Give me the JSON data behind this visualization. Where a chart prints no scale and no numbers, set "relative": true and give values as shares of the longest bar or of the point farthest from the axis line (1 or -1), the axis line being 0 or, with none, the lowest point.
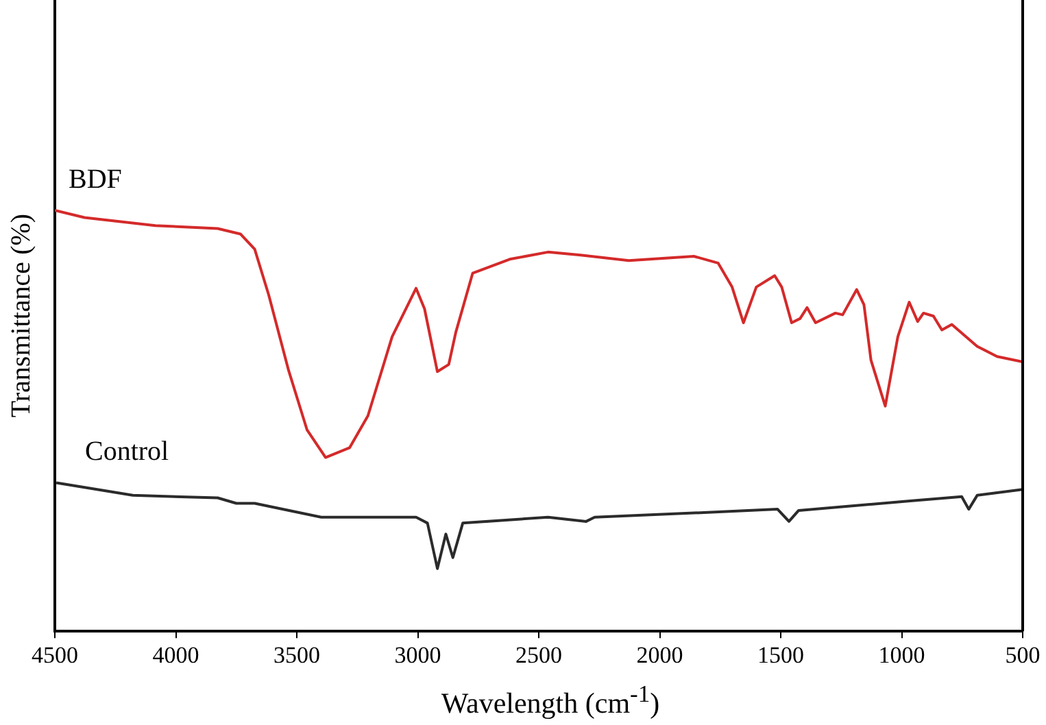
{
  "chart_data": {
    "type": "line",
    "xlabel": "Wavelength (cm$^{-1}$)",
    "ylabel": "Transmittance (%)",
    "relative": true,
    "xlim": [
      4500,
      500
    ],
    "xticks": [
      4500,
      4000,
      3500,
      3000,
      2500,
      2000,
      1500,
      1000,
      500
    ],
    "grid": false,
    "legend": false,
    "marker": "none",
    "line_style": "solid",
    "series": [
      {
        "name": "BDF",
        "color": "#d42a2a",
        "x": [
          4500,
          4377,
          4084,
          3827,
          3733,
          3674,
          3616,
          3534,
          3458,
          3381,
          3282,
          3206,
          3106,
          3007,
          2972,
          2919,
          2872,
          2843,
          2773,
          2620,
          2462,
          2327,
          2128,
          1859,
          1759,
          1701,
          1654,
          1601,
          1525,
          1496,
          1455,
          1420,
          1391,
          1356,
          1274,
          1244,
          1186,
          1156,
          1127,
          1068,
          1016,
          969,
          934,
          910,
          869,
          834,
          793,
          688,
          606,
          500
        ],
        "values": [
          1.0,
          0.983,
          0.964,
          0.957,
          0.944,
          0.908,
          0.799,
          0.62,
          0.479,
          0.413,
          0.436,
          0.512,
          0.7,
          0.815,
          0.766,
          0.617,
          0.634,
          0.71,
          0.851,
          0.884,
          0.901,
          0.894,
          0.881,
          0.891,
          0.875,
          0.818,
          0.733,
          0.818,
          0.845,
          0.818,
          0.733,
          0.743,
          0.769,
          0.733,
          0.756,
          0.752,
          0.812,
          0.776,
          0.644,
          0.535,
          0.7,
          0.782,
          0.736,
          0.756,
          0.749,
          0.716,
          0.729,
          0.677,
          0.653,
          0.64
        ]
      },
      {
        "name": "Control",
        "color": "#2b2b2b",
        "x": [
          4494,
          4178,
          3827,
          3750,
          3674,
          3399,
          3007,
          2960,
          2919,
          2884,
          2855,
          2814,
          2462,
          2304,
          2269,
          1742,
          1513,
          1466,
          1426,
          957,
          752,
          723,
          688,
          500
        ],
        "values": [
          0.353,
          0.323,
          0.317,
          0.304,
          0.304,
          0.271,
          0.271,
          0.257,
          0.149,
          0.231,
          0.175,
          0.257,
          0.271,
          0.261,
          0.271,
          0.284,
          0.29,
          0.261,
          0.287,
          0.31,
          0.32,
          0.29,
          0.323,
          0.337
        ]
      }
    ]
  }
}
